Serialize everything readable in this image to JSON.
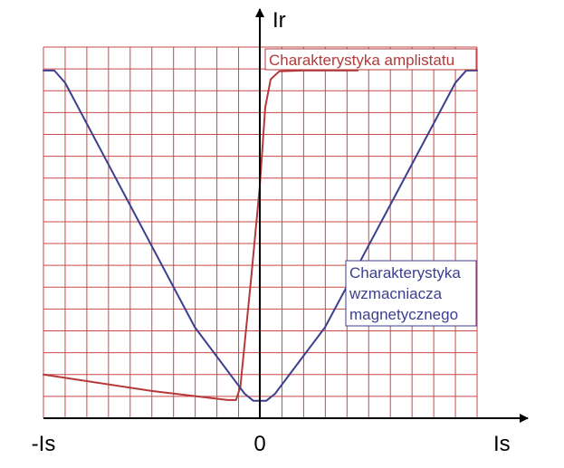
{
  "chart_data": {
    "type": "line",
    "axes": {
      "x_label": "Is",
      "y_label": "Ir",
      "x_tick_labels": [
        {
          "x": -1,
          "label": "-Is"
        },
        {
          "x": 0,
          "label": "0"
        }
      ],
      "xlim": [
        -1,
        1
      ],
      "ylim": [
        0,
        1
      ],
      "grid": true
    },
    "series": [
      {
        "name": "Charakterystyka amplistatu",
        "color": "#b5393a",
        "points": [
          [
            -1.0,
            0.125
          ],
          [
            -0.5,
            0.078
          ],
          [
            -0.15,
            0.052
          ],
          [
            -0.11,
            0.052
          ],
          [
            -0.09,
            0.09
          ],
          [
            -0.04,
            0.4
          ],
          [
            0.0,
            0.665
          ],
          [
            0.025,
            0.89
          ],
          [
            0.05,
            0.97
          ],
          [
            0.09,
            0.993
          ],
          [
            0.2,
            0.995
          ],
          [
            0.45,
            0.995
          ]
        ]
      },
      {
        "name": "Charakterystyka wzmacniacza magnetycznego",
        "color": "#3c3f8e",
        "points": [
          [
            -1.0,
            0.995
          ],
          [
            -0.95,
            0.995
          ],
          [
            -0.9,
            0.96
          ],
          [
            -0.6,
            0.61
          ],
          [
            -0.3,
            0.26
          ],
          [
            -0.07,
            0.07
          ],
          [
            -0.03,
            0.05
          ],
          [
            0.0,
            0.05
          ],
          [
            0.03,
            0.05
          ],
          [
            0.07,
            0.07
          ],
          [
            0.3,
            0.26
          ],
          [
            0.6,
            0.61
          ],
          [
            0.9,
            0.96
          ],
          [
            0.95,
            0.995
          ],
          [
            1.0,
            0.995
          ]
        ]
      }
    ],
    "colors": {
      "grid": "#c9484a",
      "axis": "#000000"
    }
  }
}
